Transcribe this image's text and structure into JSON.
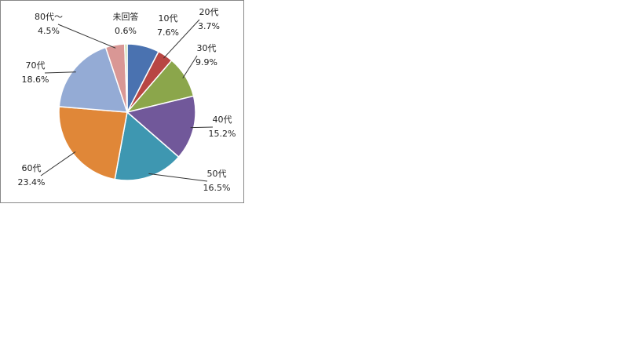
{
  "chart_data": {
    "type": "pie",
    "categories": [
      "10代",
      "20代",
      "30代",
      "40代",
      "50代",
      "60代",
      "70代",
      "80代～",
      "未回答"
    ],
    "values": [
      7.6,
      3.7,
      9.9,
      15.2,
      16.5,
      23.4,
      18.6,
      4.5,
      0.6
    ],
    "value_labels": [
      "7.6%",
      "3.7%",
      "9.9%",
      "15.2%",
      "16.5%",
      "23.4%",
      "18.6%",
      "4.5%",
      "0.6%"
    ],
    "colors": [
      "#4a72b0",
      "#b84643",
      "#8ba64b",
      "#71589a",
      "#3e97b1",
      "#e08738",
      "#94abd5",
      "#d99795",
      "#c6d7a0"
    ]
  }
}
